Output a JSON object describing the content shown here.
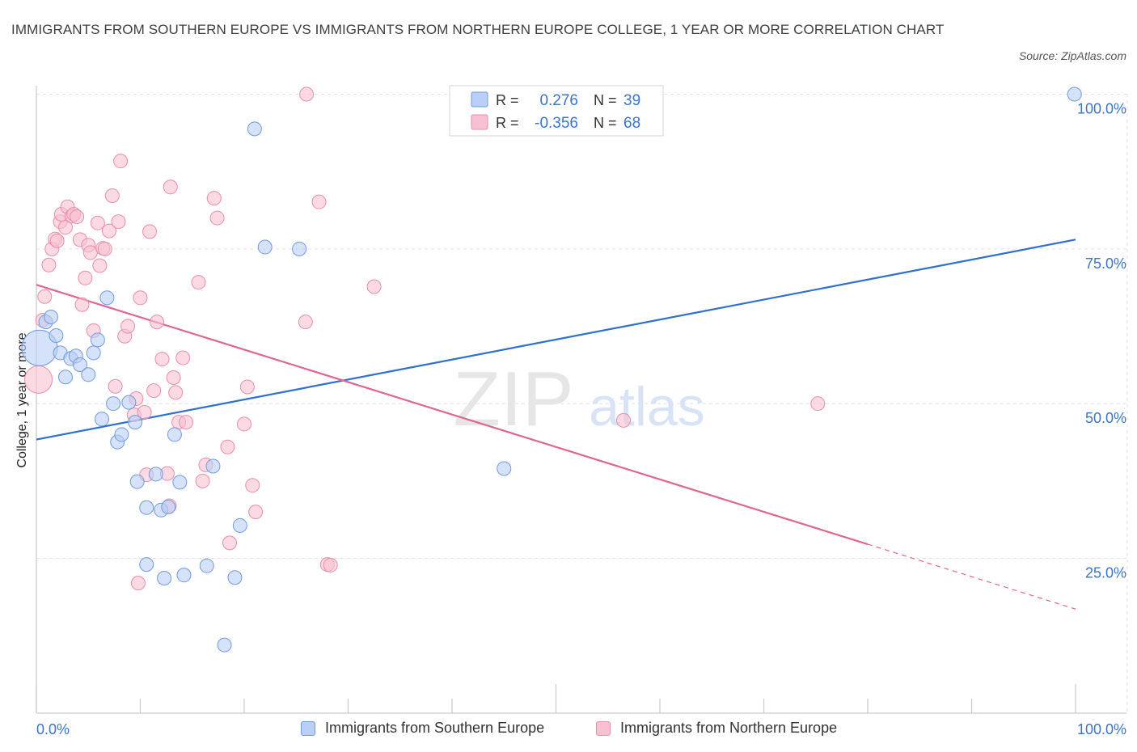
{
  "title": "IMMIGRANTS FROM SOUTHERN EUROPE VS IMMIGRANTS FROM NORTHERN EUROPE COLLEGE, 1 YEAR OR MORE CORRELATION CHART",
  "source": "Source: ZipAtlas.com",
  "watermark": {
    "zip": "ZIP",
    "atlas": "atlas"
  },
  "legend": {
    "rows": [
      {
        "r_label": "R =",
        "r_value": "0.276",
        "n_label": "N =",
        "n_value": "39"
      },
      {
        "r_label": "R =",
        "r_value": "-0.356",
        "n_label": "N =",
        "n_value": "68"
      }
    ]
  },
  "bottom_legend": [
    {
      "label": "Immigrants from Southern Europe"
    },
    {
      "label": "Immigrants from Northern Europe"
    }
  ],
  "colors": {
    "blue_fill": "#b9cff5",
    "blue_stroke": "#6f9be0",
    "blue_line": "#2f6fcf",
    "pink_fill": "#f8c1d2",
    "pink_stroke": "#e98eab",
    "pink_line": "#e0668f",
    "value_text": "#3b74c8",
    "grid": "#dfe1e5"
  },
  "chart_data": {
    "type": "scatter",
    "title": "IMMIGRANTS FROM SOUTHERN EUROPE VS IMMIGRANTS FROM NORTHERN EUROPE COLLEGE, 1 YEAR OR MORE CORRELATION CHART",
    "xlabel": "",
    "ylabel": "College, 1 year or more",
    "xlim": [
      0,
      100
    ],
    "ylim": [
      0,
      102
    ],
    "x_tick_labels": [
      {
        "value": 0,
        "label": "0.0%"
      },
      {
        "value": 100,
        "label": "100.0%"
      }
    ],
    "y_tick_labels": [
      {
        "value": 25,
        "label": "25.0%"
      },
      {
        "value": 50,
        "label": "50.0%"
      },
      {
        "value": 75,
        "label": "75.0%"
      },
      {
        "value": 100,
        "label": "100.0%"
      }
    ],
    "series": [
      {
        "name": "Immigrants from Southern Europe",
        "color": "blue",
        "R": 0.276,
        "N": 39,
        "trend": {
          "x0": 0,
          "y0": 44.2,
          "x1": 100,
          "y1": 76.5,
          "solid_to": 100
        },
        "points": [
          [
            0.3,
            59.0
          ],
          [
            0.9,
            63.2
          ],
          [
            1.4,
            64.0
          ],
          [
            1.9,
            61.0
          ],
          [
            2.3,
            58.2
          ],
          [
            2.8,
            54.3
          ],
          [
            3.3,
            57.3
          ],
          [
            3.8,
            57.7
          ],
          [
            4.2,
            56.3
          ],
          [
            5.0,
            54.7
          ],
          [
            5.5,
            58.2
          ],
          [
            5.9,
            60.3
          ],
          [
            6.3,
            47.5
          ],
          [
            6.8,
            67.1
          ],
          [
            7.4,
            50.0
          ],
          [
            7.8,
            43.8
          ],
          [
            8.2,
            45.0
          ],
          [
            8.9,
            50.2
          ],
          [
            9.5,
            47.0
          ],
          [
            9.7,
            37.4
          ],
          [
            10.6,
            33.2
          ],
          [
            10.6,
            24.0
          ],
          [
            11.5,
            38.6
          ],
          [
            12.0,
            32.8
          ],
          [
            12.3,
            21.8
          ],
          [
            12.7,
            33.3
          ],
          [
            13.3,
            45.0
          ],
          [
            13.8,
            37.3
          ],
          [
            14.2,
            22.3
          ],
          [
            16.4,
            23.8
          ],
          [
            17.0,
            39.9
          ],
          [
            18.1,
            11.0
          ],
          [
            19.1,
            21.9
          ],
          [
            19.6,
            30.3
          ],
          [
            21.0,
            94.4
          ],
          [
            22.0,
            75.3
          ],
          [
            25.3,
            75.0
          ],
          [
            45.0,
            39.5
          ],
          [
            99.9,
            100.0
          ]
        ]
      },
      {
        "name": "Immigrants from Northern Europe",
        "color": "pink",
        "R": -0.356,
        "N": 68,
        "trend": {
          "x0": 0,
          "y0": 69.2,
          "x1": 100,
          "y1": 16.8,
          "solid_to": 80
        },
        "points": [
          [
            0.2,
            53.9
          ],
          [
            0.6,
            63.5
          ],
          [
            0.8,
            67.3
          ],
          [
            1.2,
            72.4
          ],
          [
            1.5,
            75.0
          ],
          [
            1.8,
            76.6
          ],
          [
            2.0,
            76.3
          ],
          [
            2.3,
            79.4
          ],
          [
            2.4,
            80.6
          ],
          [
            2.8,
            78.5
          ],
          [
            3.0,
            81.8
          ],
          [
            3.4,
            80.3
          ],
          [
            3.6,
            80.6
          ],
          [
            3.9,
            80.2
          ],
          [
            4.2,
            76.5
          ],
          [
            4.4,
            66.0
          ],
          [
            4.7,
            70.3
          ],
          [
            5.0,
            75.6
          ],
          [
            5.2,
            74.4
          ],
          [
            5.5,
            61.8
          ],
          [
            5.9,
            79.2
          ],
          [
            6.1,
            72.3
          ],
          [
            6.4,
            75.1
          ],
          [
            6.6,
            75.0
          ],
          [
            7.0,
            77.9
          ],
          [
            7.3,
            83.6
          ],
          [
            7.6,
            52.8
          ],
          [
            7.9,
            79.4
          ],
          [
            8.1,
            89.2
          ],
          [
            8.5,
            60.9
          ],
          [
            8.8,
            62.5
          ],
          [
            9.4,
            48.2
          ],
          [
            9.6,
            50.8
          ],
          [
            10.0,
            67.1
          ],
          [
            10.4,
            48.6
          ],
          [
            10.6,
            38.5
          ],
          [
            10.9,
            77.8
          ],
          [
            11.3,
            52.1
          ],
          [
            11.6,
            63.2
          ],
          [
            12.1,
            57.2
          ],
          [
            12.6,
            38.7
          ],
          [
            12.8,
            33.5
          ],
          [
            12.9,
            85.0
          ],
          [
            13.2,
            54.2
          ],
          [
            13.4,
            51.8
          ],
          [
            13.7,
            47.0
          ],
          [
            14.1,
            57.4
          ],
          [
            14.4,
            47.0
          ],
          [
            15.6,
            69.6
          ],
          [
            16.0,
            37.5
          ],
          [
            16.3,
            40.1
          ],
          [
            17.1,
            83.2
          ],
          [
            17.4,
            80.0
          ],
          [
            18.4,
            43.0
          ],
          [
            18.6,
            27.5
          ],
          [
            20.0,
            46.7
          ],
          [
            20.3,
            52.7
          ],
          [
            20.8,
            36.8
          ],
          [
            21.1,
            32.5
          ],
          [
            25.9,
            63.2
          ],
          [
            26.0,
            100.0
          ],
          [
            27.2,
            82.6
          ],
          [
            28.0,
            24.0
          ],
          [
            28.3,
            23.9
          ],
          [
            32.5,
            68.9
          ],
          [
            56.5,
            47.3
          ],
          [
            75.2,
            50.0
          ],
          [
            9.8,
            21.0
          ]
        ]
      }
    ]
  }
}
